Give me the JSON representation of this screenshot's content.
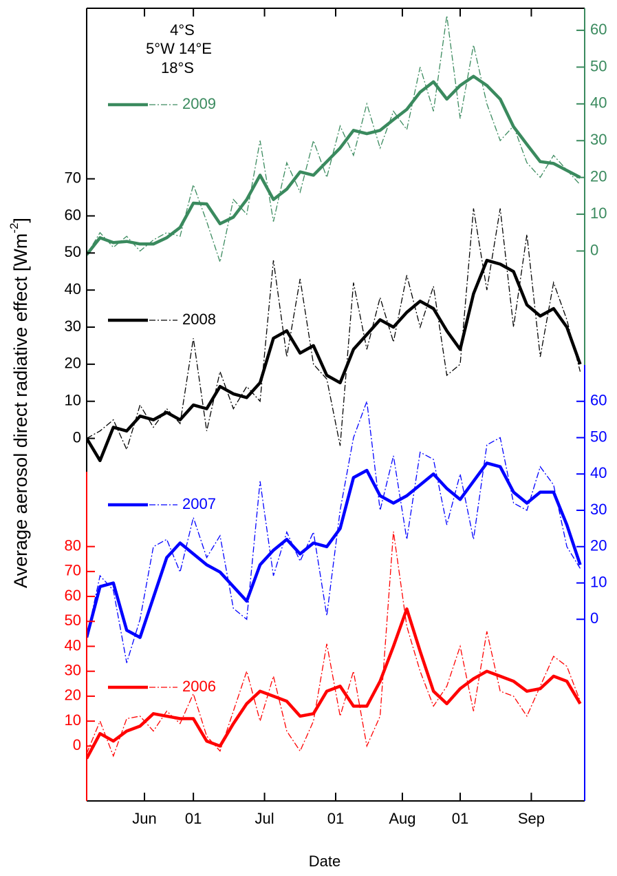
{
  "chart_data": {
    "type": "line",
    "xlabel": "Date",
    "ylabel": {
      "text": "Average aerosol direct radiative effect [Wm",
      "sup": "-2",
      "end": "]"
    },
    "annotation": [
      "4°S",
      "5°W 14°E",
      "18°S"
    ],
    "xlim": [
      0,
      112
    ],
    "xticks": [
      {
        "value": 13,
        "label": "Jun"
      },
      {
        "value": 24,
        "label": "01"
      },
      {
        "value": 40,
        "label": "Jul"
      },
      {
        "value": 56,
        "label": "01"
      },
      {
        "value": 71,
        "label": "Aug"
      },
      {
        "value": 84,
        "label": "01"
      },
      {
        "value": 100,
        "label": "Sep"
      }
    ],
    "x": [
      0,
      3,
      6,
      9,
      12,
      15,
      18,
      21,
      24,
      27,
      30,
      33,
      36,
      39,
      42,
      45,
      48,
      51,
      54,
      57,
      60,
      63,
      66,
      69,
      72,
      75,
      78,
      81,
      84,
      87,
      90,
      93,
      96,
      99,
      102,
      105,
      108,
      111
    ],
    "series": [
      {
        "name": "2009",
        "color": "#3a8a5e",
        "side": "right",
        "ylim": [
          -31,
          66
        ],
        "yticks": [
          0,
          10,
          20,
          30,
          40,
          50,
          60
        ],
        "values": [
          -1,
          3.6,
          2.3,
          2.6,
          1.9,
          1.9,
          3.6,
          6.4,
          13,
          12.8,
          7.4,
          9.2,
          14,
          20.6,
          14,
          16.8,
          21.5,
          20.6,
          24.3,
          28,
          32.8,
          31.9,
          32.8,
          35.7,
          38.5,
          43.2,
          46,
          41.3,
          45,
          47.5,
          45,
          41.3,
          33.8,
          29,
          24.3,
          23.8,
          21.9,
          20
        ],
        "raw_values": [
          -1,
          5,
          1,
          4,
          0,
          3,
          5,
          4,
          18,
          8,
          -3,
          14,
          10,
          30,
          8,
          24,
          16,
          30,
          20,
          34,
          26,
          40,
          28,
          38,
          33,
          50,
          38,
          64,
          36,
          56,
          40,
          30,
          34,
          24,
          20,
          26,
          22,
          18
        ]
      },
      {
        "name": "2008",
        "color": "#000000",
        "side": "left",
        "ylim": [
          -9,
          116
        ],
        "yticks": [
          0,
          10,
          20,
          30,
          40,
          50,
          60,
          70
        ],
        "values": [
          0,
          -6,
          3,
          2,
          6,
          5,
          7,
          5,
          9,
          8,
          14,
          12,
          11,
          15,
          27,
          29,
          23,
          25,
          17,
          15,
          24,
          28,
          32,
          30,
          34,
          37,
          35,
          29,
          24,
          39,
          48,
          47,
          45,
          36,
          33,
          35,
          30,
          20
        ],
        "raw_values": [
          0,
          2,
          5,
          -3,
          9,
          3,
          8,
          4,
          27,
          2,
          18,
          8,
          14,
          10,
          48,
          22,
          43,
          20,
          16,
          -2,
          42,
          24,
          38,
          26,
          44,
          30,
          41,
          17,
          20,
          62,
          40,
          62,
          30,
          55,
          22,
          42,
          32,
          18
        ]
      },
      {
        "name": "2007",
        "color": "#0000ff",
        "side": "right",
        "ylim": [
          -50,
          70
        ],
        "yticks": [
          0,
          10,
          20,
          30,
          40,
          50,
          60
        ],
        "values": [
          -5,
          9,
          10,
          -3,
          -5,
          6,
          17,
          21,
          18,
          15,
          13,
          9,
          5,
          15,
          19,
          22,
          18,
          21,
          20,
          25,
          39,
          41,
          34,
          32,
          34,
          37,
          40,
          36,
          33,
          38,
          43,
          42,
          35,
          32,
          35,
          35,
          26,
          15
        ],
        "raw_values": [
          -5,
          12,
          8,
          -12,
          0,
          20,
          22,
          13,
          28,
          17,
          23,
          3,
          0,
          38,
          12,
          24,
          16,
          24,
          1,
          30,
          50,
          60,
          30,
          45,
          22,
          46,
          44,
          26,
          40,
          22,
          48,
          50,
          32,
          30,
          42,
          37,
          20,
          14
        ]
      },
      {
        "name": "2006",
        "color": "#ff0000",
        "side": "left",
        "ylim": [
          -22,
          110
        ],
        "yticks": [
          0,
          10,
          20,
          30,
          40,
          50,
          60,
          70,
          80
        ],
        "values": [
          -5,
          5,
          2,
          6,
          8,
          13,
          12,
          11,
          11,
          2,
          0,
          9,
          17,
          22,
          20,
          18,
          12,
          13,
          22,
          24,
          16,
          16,
          26,
          40,
          55,
          38,
          22,
          17,
          23,
          27,
          30,
          28,
          26,
          22,
          23,
          28,
          26,
          17
        ],
        "raw_values": [
          -3,
          10,
          -4,
          11,
          12,
          6,
          14,
          9,
          21,
          4,
          -2,
          14,
          30,
          10,
          28,
          6,
          -2,
          10,
          41,
          12,
          30,
          0,
          12,
          86,
          48,
          30,
          16,
          24,
          40,
          14,
          46,
          22,
          20,
          12,
          24,
          36,
          32,
          18
        ]
      }
    ]
  }
}
